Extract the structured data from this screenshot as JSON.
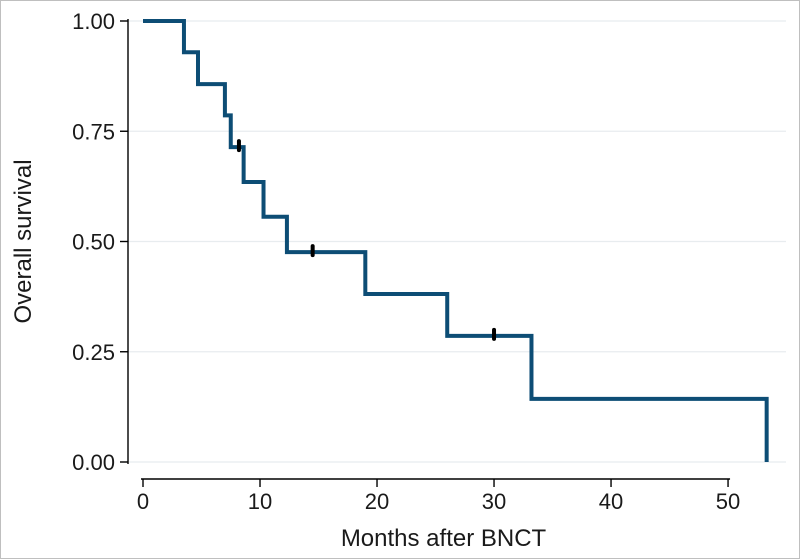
{
  "chart_data": {
    "type": "line",
    "subtype": "kaplan-meier-step",
    "title": "",
    "xlabel": "Months after BNCT",
    "ylabel": "Overall survival",
    "xlim": [
      0,
      53.5
    ],
    "ylim": [
      0,
      1
    ],
    "xticks": [
      0,
      10,
      20,
      30,
      40,
      50
    ],
    "yticks": [
      0,
      0.25,
      0.5,
      0.75,
      1
    ],
    "ytick_labels": [
      "0.00",
      "0.25",
      "0.50",
      "0.75",
      "1.00"
    ],
    "xtick_labels": [
      "0",
      "10",
      "20",
      "30",
      "40",
      "50"
    ],
    "grid": "horizontal",
    "legend": "none",
    "series": [
      {
        "color": "#0d4d75",
        "steps": [
          {
            "x": 0,
            "y": 1.0
          },
          {
            "x": 3.5,
            "y": 0.929
          },
          {
            "x": 4.7,
            "y": 0.857
          },
          {
            "x": 7.0,
            "y": 0.786
          },
          {
            "x": 7.5,
            "y": 0.714
          },
          {
            "x": 8.6,
            "y": 0.635
          },
          {
            "x": 10.3,
            "y": 0.556
          },
          {
            "x": 12.3,
            "y": 0.476
          },
          {
            "x": 19.0,
            "y": 0.381
          },
          {
            "x": 26.0,
            "y": 0.286
          },
          {
            "x": 33.2,
            "y": 0.143
          },
          {
            "x": 53.3,
            "y": 0.0
          }
        ],
        "censored": [
          {
            "x": 8.2,
            "y": 0.714
          },
          {
            "x": 14.5,
            "y": 0.476
          },
          {
            "x": 30.0,
            "y": 0.286
          }
        ]
      }
    ]
  }
}
